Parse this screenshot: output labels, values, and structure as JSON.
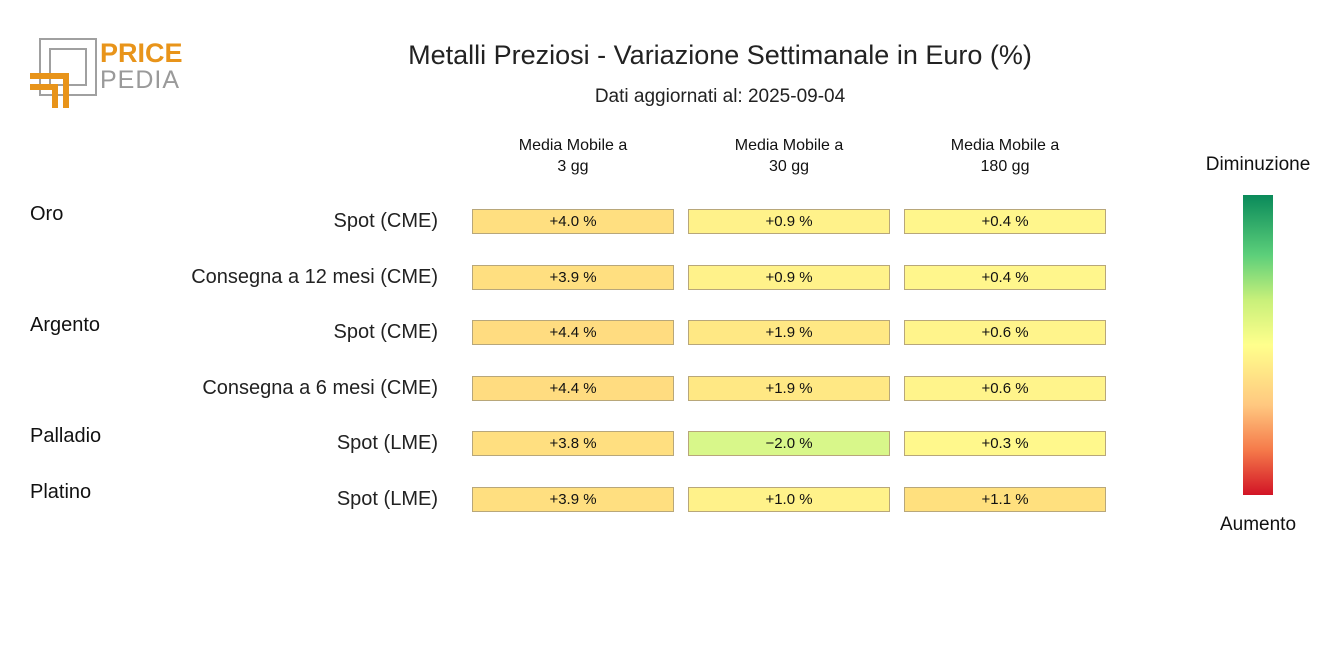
{
  "logo": {
    "word1": "PRICE",
    "word2": "PEDIA"
  },
  "title": "Metalli Preziosi - Variazione Settimanale in Euro (%)",
  "subtitle": "Dati aggiornati al: 2025-09-04",
  "chart_data": {
    "type": "heatmap",
    "columns": [
      {
        "line1": "Media Mobile a",
        "line2": "3 gg"
      },
      {
        "line1": "Media Mobile a",
        "line2": "30 gg"
      },
      {
        "line1": "Media Mobile a",
        "line2": "180 gg"
      }
    ],
    "rows": [
      {
        "group": "Oro",
        "label": "Spot (CME)",
        "values": [
          4.0,
          0.9,
          0.4
        ],
        "texts": [
          "+4.0 %",
          "+0.9 %",
          "+0.4 %"
        ],
        "colors": [
          "#ffdf80",
          "#fff28a",
          "#fff68c"
        ]
      },
      {
        "group": "",
        "label": "Consegna a 12 mesi (CME)",
        "values": [
          3.9,
          0.9,
          0.4
        ],
        "texts": [
          "+3.9 %",
          "+0.9 %",
          "+0.4 %"
        ],
        "colors": [
          "#ffdf80",
          "#fff28a",
          "#fff68c"
        ]
      },
      {
        "group": "Argento",
        "label": "Spot (CME)",
        "values": [
          4.4,
          1.9,
          0.6
        ],
        "texts": [
          "+4.4 %",
          "+1.9 %",
          "+0.6 %"
        ],
        "colors": [
          "#ffdc80",
          "#ffe884",
          "#fff48b"
        ]
      },
      {
        "group": "",
        "label": "Consegna a 6 mesi (CME)",
        "values": [
          4.4,
          1.9,
          0.6
        ],
        "texts": [
          "+4.4 %",
          "+1.9 %",
          "+0.6 %"
        ],
        "colors": [
          "#ffdc80",
          "#ffe884",
          "#fff48b"
        ]
      },
      {
        "group": "Palladio",
        "label": "Spot (LME)",
        "values": [
          3.8,
          -2.0,
          0.3
        ],
        "texts": [
          "+3.8 %",
          "−2.0 %",
          "+0.3 %"
        ],
        "colors": [
          "#ffdf80",
          "#d8f78a",
          "#fff88c"
        ]
      },
      {
        "group": "Platino",
        "label": "Spot (LME)",
        "values": [
          3.9,
          1.0,
          1.1
        ],
        "texts": [
          "+3.9 %",
          "+1.0 %",
          "+1.1 %"
        ],
        "colors": [
          "#ffdf80",
          "#fff28a",
          "#ffe07e"
        ]
      }
    ],
    "legend": {
      "top": "Diminuzione",
      "bottom": "Aumento"
    }
  }
}
